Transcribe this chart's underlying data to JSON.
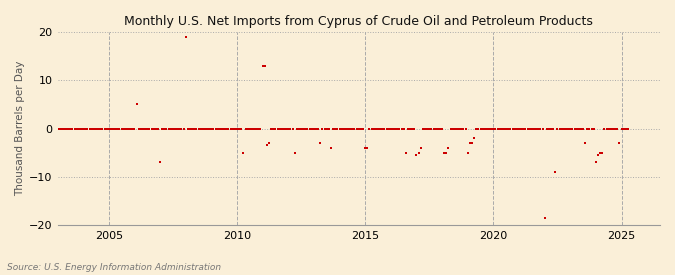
{
  "title": "Monthly U.S. Net Imports from Cyprus of Crude Oil and Petroleum Products",
  "ylabel": "Thousand Barrels per Day",
  "source": "Source: U.S. Energy Information Administration",
  "background_color": "#faefd8",
  "dot_color": "#cc0000",
  "grid_color": "#aaaaaa",
  "vgrid_color": "#aaaaaa",
  "ylim": [
    -20,
    20
  ],
  "yticks": [
    -20,
    -10,
    0,
    10,
    20
  ],
  "xlim_start": 2003.0,
  "xlim_end": 2026.5,
  "xticks": [
    2005,
    2010,
    2015,
    2020,
    2025
  ],
  "data_points": [
    [
      2003.0,
      0
    ],
    [
      2003.083,
      0
    ],
    [
      2003.167,
      0
    ],
    [
      2003.25,
      0
    ],
    [
      2003.333,
      0
    ],
    [
      2003.417,
      0
    ],
    [
      2003.5,
      0
    ],
    [
      2003.583,
      0
    ],
    [
      2003.667,
      0
    ],
    [
      2003.75,
      0
    ],
    [
      2003.833,
      0
    ],
    [
      2003.917,
      0
    ],
    [
      2004.0,
      0
    ],
    [
      2004.083,
      0
    ],
    [
      2004.167,
      0
    ],
    [
      2004.25,
      0
    ],
    [
      2004.333,
      0
    ],
    [
      2004.417,
      0
    ],
    [
      2004.5,
      0
    ],
    [
      2004.583,
      0
    ],
    [
      2004.667,
      0
    ],
    [
      2004.75,
      0
    ],
    [
      2004.833,
      0
    ],
    [
      2004.917,
      0
    ],
    [
      2005.0,
      0
    ],
    [
      2005.083,
      0
    ],
    [
      2005.167,
      0
    ],
    [
      2005.25,
      0
    ],
    [
      2005.333,
      0
    ],
    [
      2005.417,
      0
    ],
    [
      2005.5,
      0
    ],
    [
      2005.583,
      0
    ],
    [
      2005.667,
      0
    ],
    [
      2005.75,
      0
    ],
    [
      2005.833,
      0
    ],
    [
      2005.917,
      0
    ],
    [
      2006.0,
      0
    ],
    [
      2006.083,
      5
    ],
    [
      2006.167,
      0
    ],
    [
      2006.25,
      0
    ],
    [
      2006.333,
      0
    ],
    [
      2006.417,
      0
    ],
    [
      2006.5,
      0
    ],
    [
      2006.583,
      0
    ],
    [
      2006.667,
      0
    ],
    [
      2006.75,
      0
    ],
    [
      2006.833,
      0
    ],
    [
      2006.917,
      0
    ],
    [
      2007.0,
      -7
    ],
    [
      2007.083,
      0
    ],
    [
      2007.167,
      0
    ],
    [
      2007.25,
      0
    ],
    [
      2007.333,
      0
    ],
    [
      2007.417,
      0
    ],
    [
      2007.5,
      0
    ],
    [
      2007.583,
      0
    ],
    [
      2007.667,
      0
    ],
    [
      2007.75,
      0
    ],
    [
      2007.833,
      0
    ],
    [
      2007.917,
      0
    ],
    [
      2008.0,
      19
    ],
    [
      2008.083,
      0
    ],
    [
      2008.167,
      0
    ],
    [
      2008.25,
      0
    ],
    [
      2008.333,
      0
    ],
    [
      2008.417,
      0
    ],
    [
      2008.5,
      0
    ],
    [
      2008.583,
      0
    ],
    [
      2008.667,
      0
    ],
    [
      2008.75,
      0
    ],
    [
      2008.833,
      0
    ],
    [
      2008.917,
      0
    ],
    [
      2009.0,
      0
    ],
    [
      2009.083,
      0
    ],
    [
      2009.167,
      0
    ],
    [
      2009.25,
      0
    ],
    [
      2009.333,
      0
    ],
    [
      2009.417,
      0
    ],
    [
      2009.5,
      0
    ],
    [
      2009.583,
      0
    ],
    [
      2009.667,
      0
    ],
    [
      2009.75,
      0
    ],
    [
      2009.833,
      0
    ],
    [
      2009.917,
      0
    ],
    [
      2010.0,
      0
    ],
    [
      2010.083,
      0
    ],
    [
      2010.167,
      0
    ],
    [
      2010.25,
      -5
    ],
    [
      2010.333,
      0
    ],
    [
      2010.417,
      0
    ],
    [
      2010.5,
      0
    ],
    [
      2010.583,
      0
    ],
    [
      2010.667,
      0
    ],
    [
      2010.75,
      0
    ],
    [
      2010.833,
      0
    ],
    [
      2010.917,
      0
    ],
    [
      2011.0,
      13
    ],
    [
      2011.083,
      13
    ],
    [
      2011.167,
      -3.5
    ],
    [
      2011.25,
      -3
    ],
    [
      2011.333,
      0
    ],
    [
      2011.417,
      0
    ],
    [
      2011.5,
      0
    ],
    [
      2011.583,
      0
    ],
    [
      2011.667,
      0
    ],
    [
      2011.75,
      0
    ],
    [
      2011.833,
      0
    ],
    [
      2011.917,
      0
    ],
    [
      2012.0,
      0
    ],
    [
      2012.083,
      0
    ],
    [
      2012.167,
      0
    ],
    [
      2012.25,
      -5
    ],
    [
      2012.333,
      0
    ],
    [
      2012.417,
      0
    ],
    [
      2012.5,
      0
    ],
    [
      2012.583,
      0
    ],
    [
      2012.667,
      0
    ],
    [
      2012.75,
      0
    ],
    [
      2012.833,
      0
    ],
    [
      2012.917,
      0
    ],
    [
      2013.0,
      0
    ],
    [
      2013.083,
      0
    ],
    [
      2013.167,
      0
    ],
    [
      2013.25,
      -3
    ],
    [
      2013.333,
      0
    ],
    [
      2013.417,
      0
    ],
    [
      2013.5,
      0
    ],
    [
      2013.583,
      0
    ],
    [
      2013.667,
      -4
    ],
    [
      2013.75,
      0
    ],
    [
      2013.833,
      0
    ],
    [
      2013.917,
      0
    ],
    [
      2014.0,
      0
    ],
    [
      2014.083,
      0
    ],
    [
      2014.167,
      0
    ],
    [
      2014.25,
      0
    ],
    [
      2014.333,
      0
    ],
    [
      2014.417,
      0
    ],
    [
      2014.5,
      0
    ],
    [
      2014.583,
      0
    ],
    [
      2014.667,
      0
    ],
    [
      2014.75,
      0
    ],
    [
      2014.833,
      0
    ],
    [
      2014.917,
      0
    ],
    [
      2015.0,
      -4
    ],
    [
      2015.083,
      -4
    ],
    [
      2015.167,
      0
    ],
    [
      2015.25,
      0
    ],
    [
      2015.333,
      0
    ],
    [
      2015.417,
      0
    ],
    [
      2015.5,
      0
    ],
    [
      2015.583,
      0
    ],
    [
      2015.667,
      0
    ],
    [
      2015.75,
      0
    ],
    [
      2015.833,
      0
    ],
    [
      2015.917,
      0
    ],
    [
      2016.0,
      0
    ],
    [
      2016.083,
      0
    ],
    [
      2016.167,
      0
    ],
    [
      2016.25,
      0
    ],
    [
      2016.333,
      0
    ],
    [
      2016.417,
      0
    ],
    [
      2016.5,
      0
    ],
    [
      2016.583,
      -5
    ],
    [
      2016.667,
      0
    ],
    [
      2016.75,
      0
    ],
    [
      2016.833,
      0
    ],
    [
      2016.917,
      0
    ],
    [
      2017.0,
      -5.5
    ],
    [
      2017.083,
      -5
    ],
    [
      2017.167,
      -4
    ],
    [
      2017.25,
      0
    ],
    [
      2017.333,
      0
    ],
    [
      2017.417,
      0
    ],
    [
      2017.5,
      0
    ],
    [
      2017.583,
      0
    ],
    [
      2017.667,
      0
    ],
    [
      2017.75,
      0
    ],
    [
      2017.833,
      0
    ],
    [
      2017.917,
      0
    ],
    [
      2018.0,
      0
    ],
    [
      2018.083,
      -5
    ],
    [
      2018.167,
      -5
    ],
    [
      2018.25,
      -4
    ],
    [
      2018.333,
      0
    ],
    [
      2018.417,
      0
    ],
    [
      2018.5,
      0
    ],
    [
      2018.583,
      0
    ],
    [
      2018.667,
      0
    ],
    [
      2018.75,
      0
    ],
    [
      2018.833,
      0
    ],
    [
      2018.917,
      0
    ],
    [
      2019.0,
      -5
    ],
    [
      2019.083,
      -3
    ],
    [
      2019.167,
      -3
    ],
    [
      2019.25,
      -2
    ],
    [
      2019.333,
      0
    ],
    [
      2019.417,
      0
    ],
    [
      2019.5,
      0
    ],
    [
      2019.583,
      0
    ],
    [
      2019.667,
      0
    ],
    [
      2019.75,
      0
    ],
    [
      2019.833,
      0
    ],
    [
      2019.917,
      0
    ],
    [
      2020.0,
      0
    ],
    [
      2020.083,
      0
    ],
    [
      2020.167,
      0
    ],
    [
      2020.25,
      0
    ],
    [
      2020.333,
      0
    ],
    [
      2020.417,
      0
    ],
    [
      2020.5,
      0
    ],
    [
      2020.583,
      0
    ],
    [
      2020.667,
      0
    ],
    [
      2020.75,
      0
    ],
    [
      2020.833,
      0
    ],
    [
      2020.917,
      0
    ],
    [
      2021.0,
      0
    ],
    [
      2021.083,
      0
    ],
    [
      2021.167,
      0
    ],
    [
      2021.25,
      0
    ],
    [
      2021.333,
      0
    ],
    [
      2021.417,
      0
    ],
    [
      2021.5,
      0
    ],
    [
      2021.583,
      0
    ],
    [
      2021.667,
      0
    ],
    [
      2021.75,
      0
    ],
    [
      2021.833,
      0
    ],
    [
      2021.917,
      0
    ],
    [
      2022.0,
      -18.5
    ],
    [
      2022.083,
      0
    ],
    [
      2022.167,
      0
    ],
    [
      2022.25,
      0
    ],
    [
      2022.333,
      0
    ],
    [
      2022.417,
      -9
    ],
    [
      2022.5,
      0
    ],
    [
      2022.583,
      0
    ],
    [
      2022.667,
      0
    ],
    [
      2022.75,
      0
    ],
    [
      2022.833,
      0
    ],
    [
      2022.917,
      0
    ],
    [
      2023.0,
      0
    ],
    [
      2023.083,
      0
    ],
    [
      2023.167,
      0
    ],
    [
      2023.25,
      0
    ],
    [
      2023.333,
      0
    ],
    [
      2023.417,
      0
    ],
    [
      2023.5,
      0
    ],
    [
      2023.583,
      -3
    ],
    [
      2023.667,
      0
    ],
    [
      2023.75,
      0
    ],
    [
      2023.833,
      0
    ],
    [
      2023.917,
      0
    ],
    [
      2024.0,
      -7
    ],
    [
      2024.083,
      -5.5
    ],
    [
      2024.167,
      -5
    ],
    [
      2024.25,
      -5
    ],
    [
      2024.333,
      0
    ],
    [
      2024.417,
      0
    ],
    [
      2024.5,
      0
    ],
    [
      2024.583,
      0
    ],
    [
      2024.667,
      0
    ],
    [
      2024.75,
      0
    ],
    [
      2024.833,
      0
    ],
    [
      2024.917,
      -3
    ],
    [
      2025.0,
      0
    ],
    [
      2025.083,
      0
    ],
    [
      2025.167,
      0
    ],
    [
      2025.25,
      0
    ]
  ]
}
